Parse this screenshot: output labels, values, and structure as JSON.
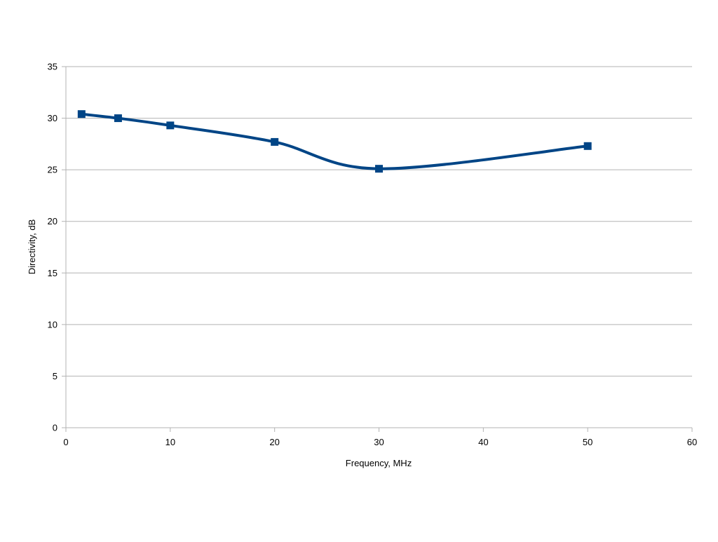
{
  "chart_data": {
    "type": "line",
    "title": "",
    "xlabel": "Frequency, MHz",
    "ylabel": "Directivity, dB",
    "xlim": [
      0,
      60
    ],
    "ylim": [
      0,
      35
    ],
    "x_ticks": [
      0,
      10,
      20,
      30,
      40,
      50,
      60
    ],
    "y_ticks": [
      0,
      5,
      10,
      15,
      20,
      25,
      30,
      35
    ],
    "x_tick_labels": [
      "0",
      "10",
      "20",
      "30",
      "40",
      "50",
      "60"
    ],
    "y_tick_labels": [
      "0",
      "5",
      "10",
      "15",
      "20",
      "25",
      "30",
      "35"
    ],
    "grid": "horizontal",
    "legend": "none",
    "smooth": true,
    "marker": "square",
    "series": [
      {
        "color": "#004586",
        "x": [
          1.5,
          5,
          10,
          20,
          30,
          50
        ],
        "y": [
          30.4,
          30.0,
          29.3,
          27.7,
          25.1,
          27.3
        ]
      }
    ]
  }
}
